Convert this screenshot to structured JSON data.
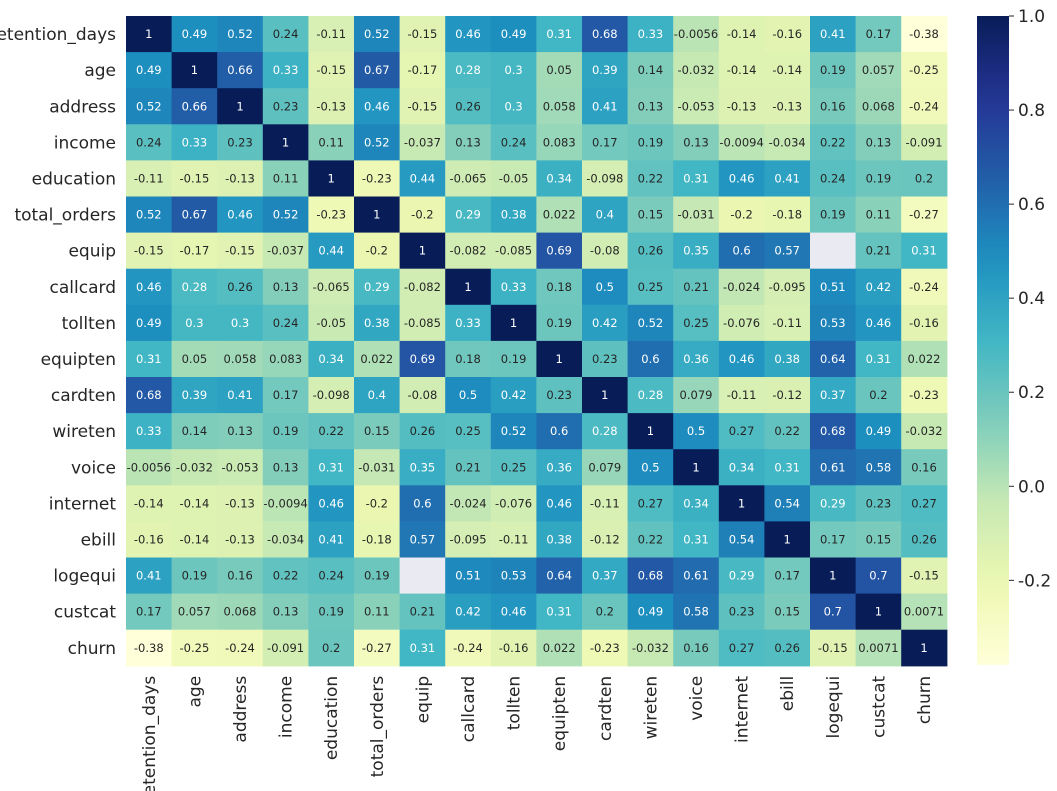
{
  "chart_data": {
    "type": "heatmap",
    "title": "",
    "colormap": "YlGnBu",
    "labels": [
      "retention_days",
      "age",
      "address",
      "income",
      "education",
      "total_orders",
      "equip",
      "callcard",
      "tollten",
      "equipten",
      "cardten",
      "wireten",
      "voice",
      "internet",
      "ebill",
      "logequi",
      "custcat",
      "churn"
    ],
    "matrix": [
      [
        1,
        0.49,
        0.52,
        0.24,
        -0.11,
        0.52,
        -0.15,
        0.46,
        0.49,
        0.31,
        0.68,
        0.33,
        -0.0056,
        -0.14,
        -0.16,
        0.41,
        0.17,
        -0.38
      ],
      [
        0.49,
        1,
        0.66,
        0.33,
        -0.15,
        0.67,
        -0.17,
        0.28,
        0.3,
        0.05,
        0.39,
        0.14,
        -0.032,
        -0.14,
        -0.14,
        0.19,
        0.057,
        -0.25
      ],
      [
        0.52,
        0.66,
        1,
        0.23,
        -0.13,
        0.46,
        -0.15,
        0.26,
        0.3,
        0.058,
        0.41,
        0.13,
        -0.053,
        -0.13,
        -0.13,
        0.16,
        0.068,
        -0.24
      ],
      [
        0.24,
        0.33,
        0.23,
        1,
        0.11,
        0.52,
        -0.037,
        0.13,
        0.24,
        0.083,
        0.17,
        0.19,
        0.13,
        -0.0094,
        -0.034,
        0.22,
        0.13,
        -0.091
      ],
      [
        -0.11,
        -0.15,
        -0.13,
        0.11,
        1,
        -0.23,
        0.44,
        -0.065,
        -0.05,
        0.34,
        -0.098,
        0.22,
        0.31,
        0.46,
        0.41,
        0.24,
        0.19,
        0.2
      ],
      [
        0.52,
        0.67,
        0.46,
        0.52,
        -0.23,
        1,
        -0.2,
        0.29,
        0.38,
        0.022,
        0.4,
        0.15,
        -0.031,
        -0.2,
        -0.18,
        0.19,
        0.11,
        -0.27
      ],
      [
        -0.15,
        -0.17,
        -0.15,
        -0.037,
        0.44,
        -0.2,
        1,
        -0.082,
        -0.085,
        0.69,
        -0.08,
        0.26,
        0.35,
        0.6,
        0.57,
        null,
        0.21,
        0.31
      ],
      [
        0.46,
        0.28,
        0.26,
        0.13,
        -0.065,
        0.29,
        -0.082,
        1,
        0.33,
        0.18,
        0.5,
        0.25,
        0.21,
        -0.024,
        -0.095,
        0.51,
        0.42,
        -0.24
      ],
      [
        0.49,
        0.3,
        0.3,
        0.24,
        -0.05,
        0.38,
        -0.085,
        0.33,
        1,
        0.19,
        0.42,
        0.52,
        0.25,
        -0.076,
        -0.11,
        0.53,
        0.46,
        -0.16
      ],
      [
        0.31,
        0.05,
        0.058,
        0.083,
        0.34,
        0.022,
        0.69,
        0.18,
        0.19,
        1,
        0.23,
        0.6,
        0.36,
        0.46,
        0.38,
        0.64,
        0.31,
        0.022
      ],
      [
        0.68,
        0.39,
        0.41,
        0.17,
        -0.098,
        0.4,
        -0.08,
        0.5,
        0.42,
        0.23,
        1,
        0.28,
        0.079,
        -0.11,
        -0.12,
        0.37,
        0.2,
        -0.23
      ],
      [
        0.33,
        0.14,
        0.13,
        0.19,
        0.22,
        0.15,
        0.26,
        0.25,
        0.52,
        0.6,
        0.28,
        1,
        0.5,
        0.27,
        0.22,
        0.68,
        0.49,
        -0.032
      ],
      [
        -0.0056,
        -0.032,
        -0.053,
        0.13,
        0.31,
        -0.031,
        0.35,
        0.21,
        0.25,
        0.36,
        0.079,
        0.5,
        1,
        0.34,
        0.31,
        0.61,
        0.58,
        0.16
      ],
      [
        -0.14,
        -0.14,
        -0.13,
        -0.0094,
        0.46,
        -0.2,
        0.6,
        -0.024,
        -0.076,
        0.46,
        -0.11,
        0.27,
        0.34,
        1,
        0.54,
        0.29,
        0.23,
        0.27
      ],
      [
        -0.16,
        -0.14,
        -0.13,
        -0.034,
        0.41,
        -0.18,
        0.57,
        -0.095,
        -0.11,
        0.38,
        -0.12,
        0.22,
        0.31,
        0.54,
        1,
        0.17,
        0.15,
        0.26
      ],
      [
        0.41,
        0.19,
        0.16,
        0.22,
        0.24,
        0.19,
        null,
        0.51,
        0.53,
        0.64,
        0.37,
        0.68,
        0.61,
        0.29,
        0.17,
        1,
        0.7,
        -0.15
      ],
      [
        0.17,
        0.057,
        0.068,
        0.13,
        0.19,
        0.11,
        0.21,
        0.42,
        0.46,
        0.31,
        0.2,
        0.49,
        0.58,
        0.23,
        0.15,
        0.7,
        1,
        0.0071
      ],
      [
        -0.38,
        -0.25,
        -0.24,
        -0.091,
        0.2,
        -0.27,
        0.31,
        -0.24,
        -0.16,
        0.022,
        -0.23,
        -0.032,
        0.16,
        0.27,
        0.26,
        -0.15,
        0.0071,
        1
      ]
    ],
    "vmin": -0.38,
    "vmax": 1.0,
    "colorbar_ticks": [
      1.0,
      0.8,
      0.6,
      0.4,
      0.2,
      0.0,
      -0.2
    ],
    "colorbar_tick_labels": [
      "1.0",
      "0.8",
      "0.6",
      "0.4",
      "0.2",
      "0.0",
      "-0.2"
    ],
    "missing_color": "#eaeaf2"
  }
}
